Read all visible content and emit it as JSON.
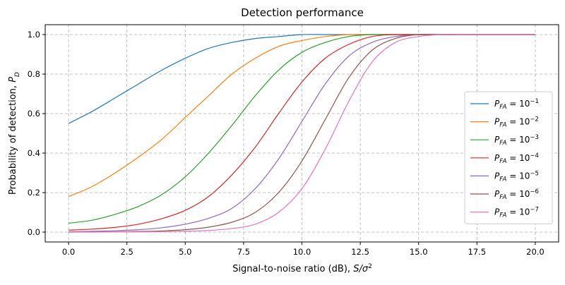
{
  "chart_data": {
    "type": "line",
    "title": "Detection performance",
    "xlabel": "Signal-to-noise ratio (dB), S/σ²",
    "ylabel": "Probability of detection, P_D",
    "xlim": [
      -1,
      21
    ],
    "ylim": [
      -0.05,
      1.05
    ],
    "xticks": [
      0.0,
      2.5,
      5.0,
      7.5,
      10.0,
      12.5,
      15.0,
      17.5,
      20.0
    ],
    "xtick_labels": [
      "0.0",
      "2.5",
      "5.0",
      "7.5",
      "10.0",
      "12.5",
      "15.0",
      "17.5",
      "20.0"
    ],
    "yticks": [
      0.0,
      0.2,
      0.4,
      0.6,
      0.8,
      1.0
    ],
    "ytick_labels": [
      "0.0",
      "0.2",
      "0.4",
      "0.6",
      "0.8",
      "1.0"
    ],
    "grid": true,
    "grid_style": "dashed",
    "legend_position": "lower-right",
    "x": [
      0,
      1,
      2,
      3,
      4,
      5,
      6,
      7,
      8,
      9,
      10,
      11,
      12,
      13,
      14,
      15,
      16,
      17,
      18,
      19,
      20
    ],
    "series": [
      {
        "name": "P_FA = 10^-1",
        "color": "#1f77b4",
        "values": [
          0.55,
          0.61,
          0.68,
          0.75,
          0.82,
          0.88,
          0.93,
          0.96,
          0.98,
          0.99,
          1.0,
          1.0,
          1.0,
          1.0,
          1.0,
          1.0,
          1.0,
          1.0,
          1.0,
          1.0,
          1.0
        ]
      },
      {
        "name": "P_FA = 10^-2",
        "color": "#ff7f0e",
        "values": [
          0.18,
          0.23,
          0.3,
          0.38,
          0.47,
          0.58,
          0.69,
          0.8,
          0.88,
          0.94,
          0.97,
          0.99,
          1.0,
          1.0,
          1.0,
          1.0,
          1.0,
          1.0,
          1.0,
          1.0,
          1.0
        ]
      },
      {
        "name": "P_FA = 10^-3",
        "color": "#2ca02c",
        "values": [
          0.045,
          0.06,
          0.09,
          0.13,
          0.19,
          0.28,
          0.4,
          0.54,
          0.69,
          0.82,
          0.91,
          0.96,
          0.99,
          1.0,
          1.0,
          1.0,
          1.0,
          1.0,
          1.0,
          1.0,
          1.0
        ]
      },
      {
        "name": "P_FA = 10^-4",
        "color": "#d62728",
        "values": [
          0.01,
          0.015,
          0.024,
          0.04,
          0.068,
          0.11,
          0.18,
          0.29,
          0.43,
          0.6,
          0.76,
          0.88,
          0.95,
          0.99,
          1.0,
          1.0,
          1.0,
          1.0,
          1.0,
          1.0,
          1.0
        ]
      },
      {
        "name": "P_FA = 10^-5",
        "color": "#9467bd",
        "values": [
          0.002,
          0.004,
          0.007,
          0.012,
          0.022,
          0.04,
          0.07,
          0.12,
          0.22,
          0.37,
          0.56,
          0.75,
          0.89,
          0.96,
          0.99,
          1.0,
          1.0,
          1.0,
          1.0,
          1.0,
          1.0
        ]
      },
      {
        "name": "P_FA = 10^-6",
        "color": "#8c564b",
        "values": [
          0.0,
          0.001,
          0.002,
          0.003,
          0.006,
          0.012,
          0.025,
          0.05,
          0.1,
          0.2,
          0.36,
          0.57,
          0.78,
          0.92,
          0.98,
          1.0,
          1.0,
          1.0,
          1.0,
          1.0,
          1.0
        ]
      },
      {
        "name": "P_FA = 10^-7",
        "color": "#e377c2",
        "values": [
          0.0,
          0.0,
          0.001,
          0.001,
          0.002,
          0.004,
          0.008,
          0.018,
          0.04,
          0.1,
          0.22,
          0.42,
          0.66,
          0.86,
          0.96,
          0.99,
          1.0,
          1.0,
          1.0,
          1.0,
          1.0
        ]
      }
    ]
  }
}
